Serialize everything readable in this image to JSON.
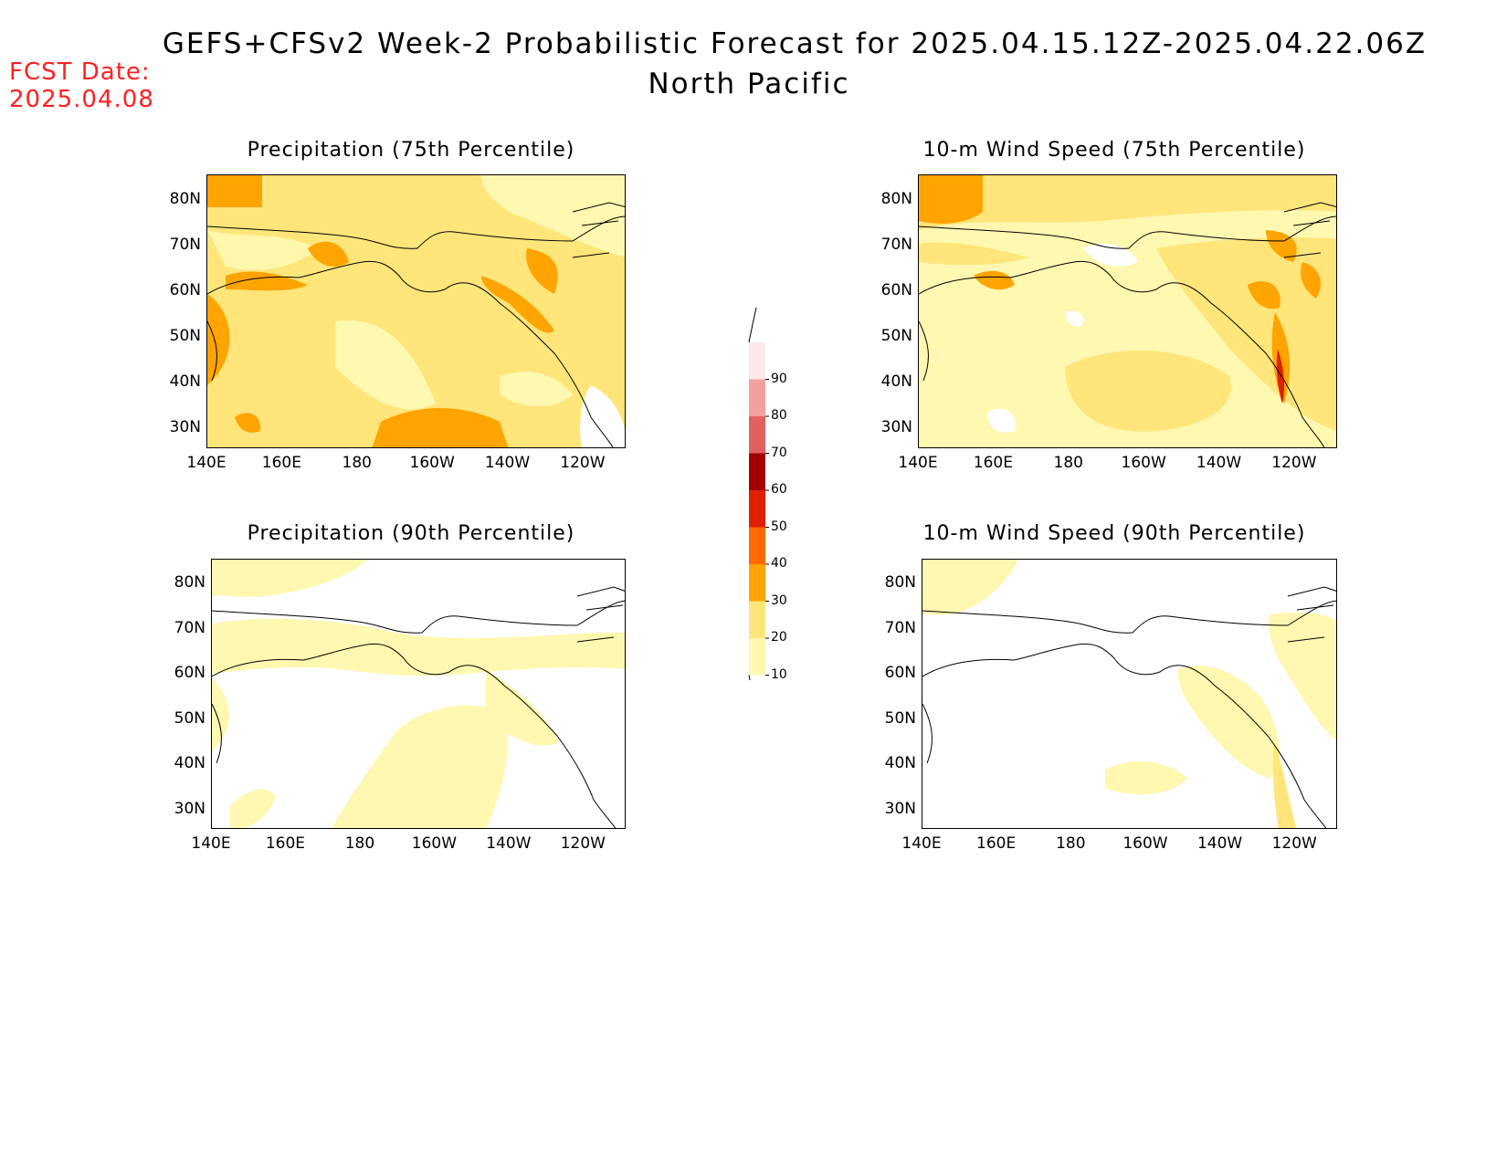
{
  "header": {
    "title": "GEFS+CFSv2 Week-2 Probabilistic Forecast for 2025.04.15.12Z-2025.04.22.06Z",
    "region": "North Pacific",
    "fcst_label": "FCST Date:",
    "fcst_date": "2025.04.08"
  },
  "panels": [
    {
      "title": "Precipitation (75th Percentile)"
    },
    {
      "title": "10-m Wind Speed (75th Percentile)"
    },
    {
      "title": "Precipitation (90th Percentile)"
    },
    {
      "title": "10-m Wind Speed (90th Percentile)"
    }
  ],
  "axes": {
    "lat_ticks": [
      "80N",
      "70N",
      "60N",
      "50N",
      "40N",
      "30N"
    ],
    "lon_ticks": [
      "140E",
      "160E",
      "180",
      "160W",
      "140W",
      "120W"
    ]
  },
  "colorbar": {
    "levels": [
      "10",
      "20",
      "30",
      "40",
      "50",
      "60",
      "70",
      "80",
      "90"
    ],
    "colors": [
      "#fff8b0",
      "#ffe57a",
      "#ffa400",
      "#ff6a00",
      "#e02000",
      "#a00000",
      "#e06060",
      "#f4a0a0",
      "#fde8e8"
    ]
  }
}
